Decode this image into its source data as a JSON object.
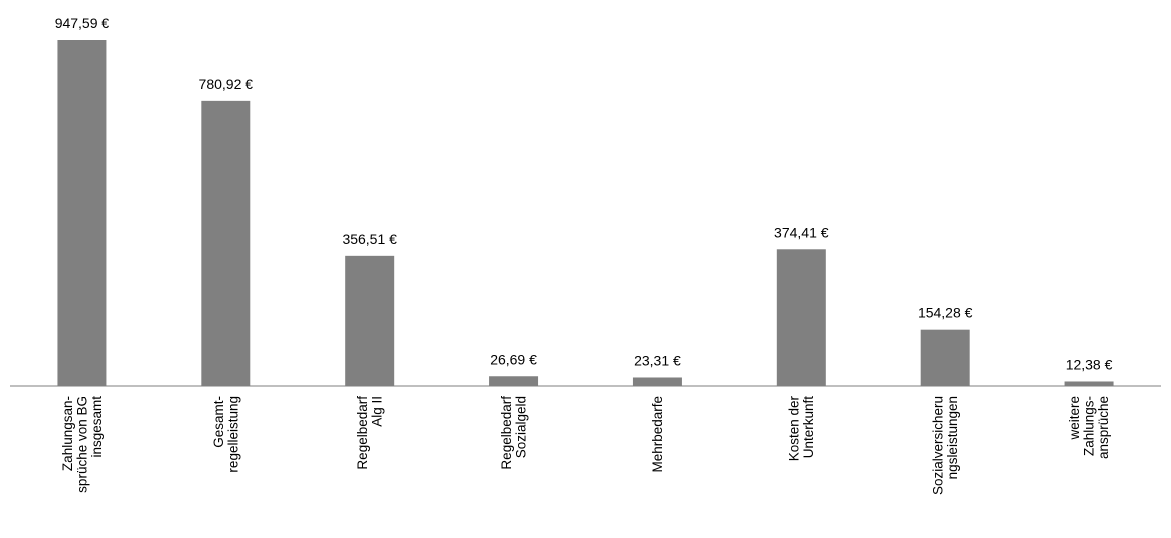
{
  "chart_data": {
    "type": "bar",
    "categories": [
      [
        "Zahlungsan-",
        "sprüche von BG",
        "insgesamt"
      ],
      [
        "Gesamt-",
        "regelleistung"
      ],
      [
        "Regelbedarf",
        "Alg II"
      ],
      [
        "Regelbedarf",
        "Sozialgeld"
      ],
      [
        "Mehrbedarfe"
      ],
      [
        "Kosten der",
        "Unterkunft"
      ],
      [
        "Sozialversicheru",
        "ngsleistungen"
      ],
      [
        "weitere",
        "Zahlungs-",
        "ansprüche"
      ]
    ],
    "values": [
      947.59,
      780.92,
      356.51,
      26.69,
      23.31,
      374.41,
      154.28,
      12.38
    ],
    "value_labels": [
      "947,59 €",
      "780,92 €",
      "356,51 €",
      "26,69 €",
      "23,31 €",
      "374,41 €",
      "154,28 €",
      "12,38 €"
    ],
    "ylim": [
      0,
      947.59
    ],
    "grid": false,
    "legend": "none",
    "colors": {
      "bar": "#808080",
      "axis": "#7f7f7f",
      "text": "#000000"
    }
  }
}
